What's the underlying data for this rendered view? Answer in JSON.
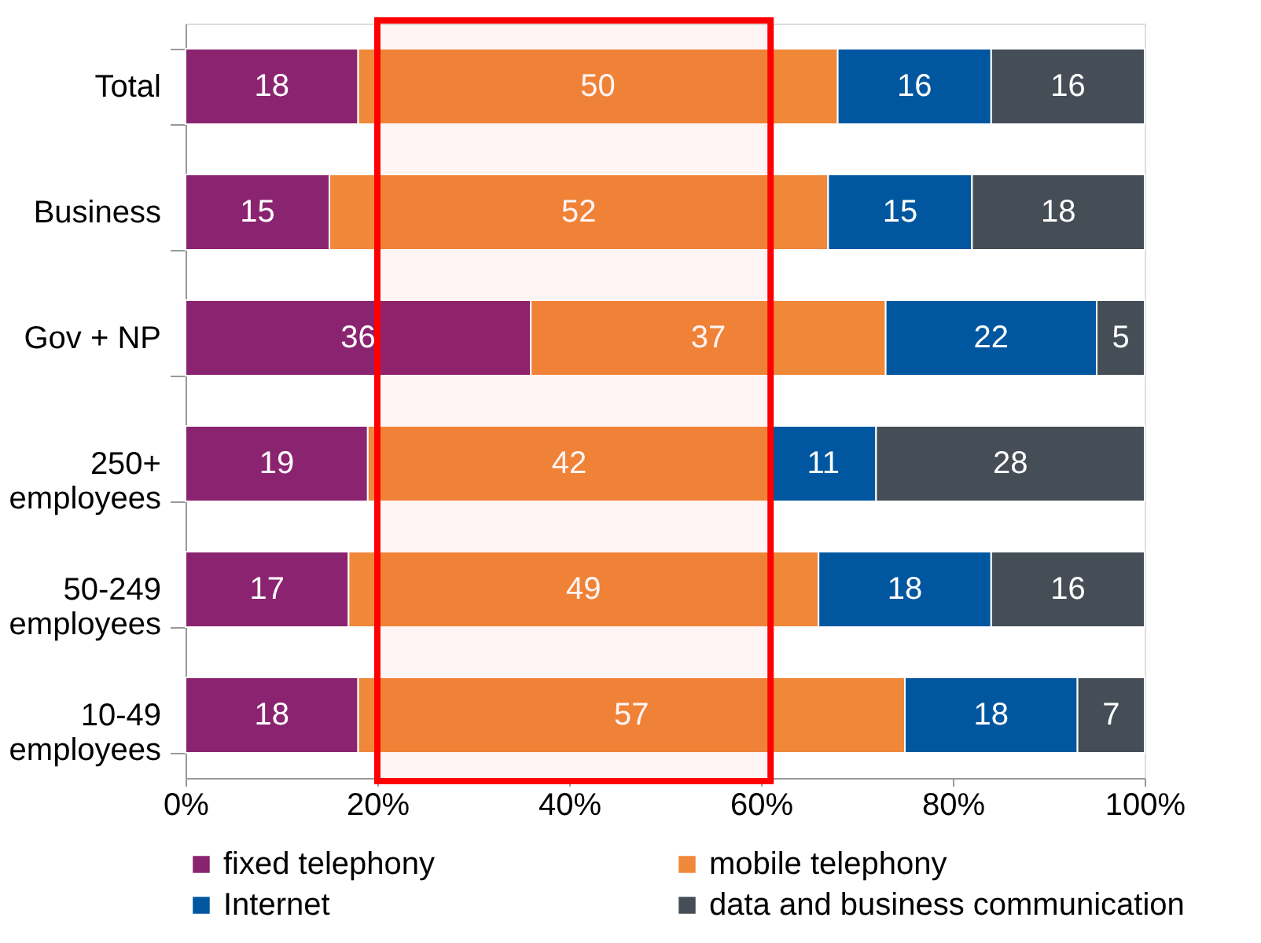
{
  "chart_data": {
    "type": "bar",
    "orientation": "horizontal",
    "stacked": true,
    "data_labels": true,
    "grid": false,
    "legend": "bottom",
    "categories": [
      "Total",
      "Business",
      "Gov + NP",
      "250+ employees",
      "50-249 employees",
      "10-49 employees"
    ],
    "series": [
      {
        "name": "fixed telephony",
        "color": "#8b2470",
        "values": [
          18,
          15,
          36,
          19,
          17,
          18
        ]
      },
      {
        "name": "mobile telephony",
        "color": "#f0883a",
        "values": [
          50,
          52,
          37,
          42,
          49,
          57
        ]
      },
      {
        "name": "Internet",
        "color": "#0057a0",
        "values": [
          16,
          15,
          22,
          11,
          18,
          18
        ]
      },
      {
        "name": "data and business communication",
        "color": "#454e56",
        "values": [
          16,
          18,
          5,
          28,
          16,
          7
        ]
      }
    ],
    "xlim": [
      0,
      100
    ],
    "xticks": [
      {
        "value": 0,
        "label": "0%"
      },
      {
        "value": 20,
        "label": "20%"
      },
      {
        "value": 40,
        "label": "40%"
      },
      {
        "value": 60,
        "label": "60%"
      },
      {
        "value": 80,
        "label": "80%"
      },
      {
        "value": 100,
        "label": "100%"
      }
    ],
    "bands": [
      {
        "axis": "x",
        "from": 20,
        "to": 61,
        "color": "#ff0000"
      }
    ]
  }
}
